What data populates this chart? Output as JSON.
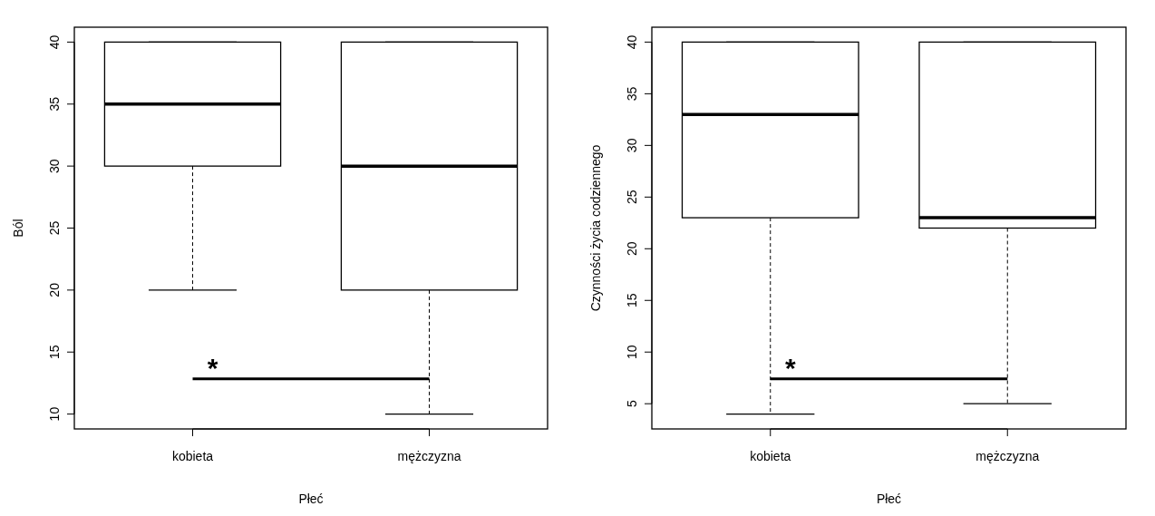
{
  "chart_data": [
    {
      "type": "box",
      "categories": [
        "kobieta",
        "mężczyzna"
      ],
      "boxes": [
        {
          "low": 20,
          "q1": 30,
          "median": 35,
          "q3": 40,
          "high": 40
        },
        {
          "low": 10,
          "q1": 20,
          "median": 30,
          "q3": 40,
          "high": 40
        }
      ],
      "ylim": [
        8.8,
        41.2
      ],
      "yticks": [
        10,
        15,
        20,
        25,
        30,
        35,
        40
      ],
      "xlabel": "Płeć",
      "ylabel": "Ból",
      "annotations": [
        "*"
      ]
    },
    {
      "type": "box",
      "categories": [
        "kobieta",
        "mężczyzna"
      ],
      "boxes": [
        {
          "low": 4,
          "q1": 23,
          "median": 33,
          "q3": 40,
          "high": 40
        },
        {
          "low": 5,
          "q1": 22,
          "median": 23,
          "q3": 40,
          "high": 40
        }
      ],
      "ylim": [
        2.56,
        41.44
      ],
      "yticks": [
        5,
        10,
        15,
        20,
        25,
        30,
        35,
        40
      ],
      "xlabel": "Płeć",
      "ylabel": "Czynności życia codziennego",
      "annotations": [
        "*"
      ]
    }
  ]
}
